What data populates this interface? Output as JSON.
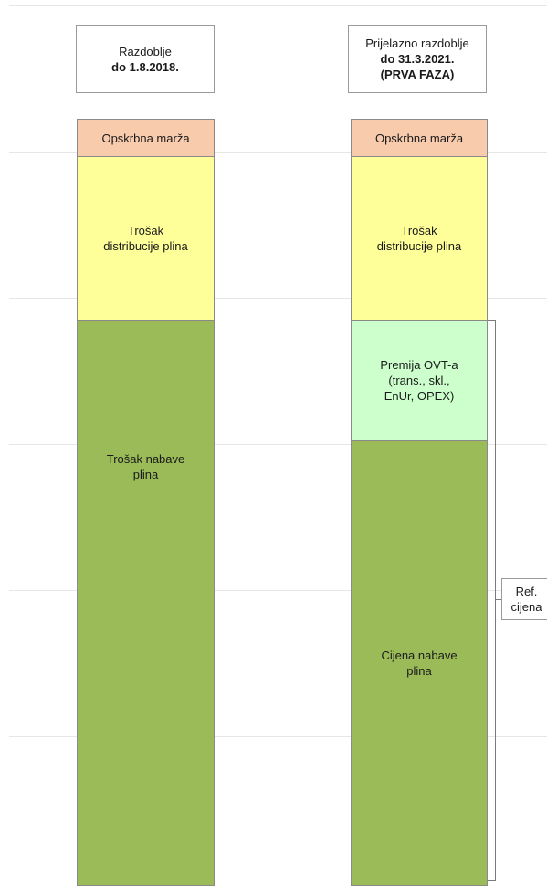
{
  "columns": [
    {
      "header_line1": "Razdoblje",
      "header_line2": "do 1.8.2018.",
      "header_line3": "",
      "segments": {
        "margin": "Opskrbna marža",
        "distribution_1": "Trošak",
        "distribution_2": "distribucije plina",
        "procurement_1": "Trošak nabave",
        "procurement_2": "plina"
      }
    },
    {
      "header_line1": "Prijelazno razdoblje",
      "header_line2": "do 31.3.2021.",
      "header_line3": "(PRVA FAZA)",
      "segments": {
        "margin": "Opskrbna marža",
        "distribution_1": "Trošak",
        "distribution_2": "distribucije plina",
        "premium_1": "Premija OVT-a",
        "premium_2": "(trans., skl.,",
        "premium_3": "EnUr, OPEX)",
        "price_1": "Cijena nabave",
        "price_2": "plina"
      }
    }
  ],
  "bracket_label": {
    "line1": "Ref.",
    "line2": "cijena"
  },
  "colors": {
    "margin": "#f8cbad",
    "distribution": "#ffff99",
    "premium": "#ccffcc",
    "procurement": "#9bbb59"
  }
}
